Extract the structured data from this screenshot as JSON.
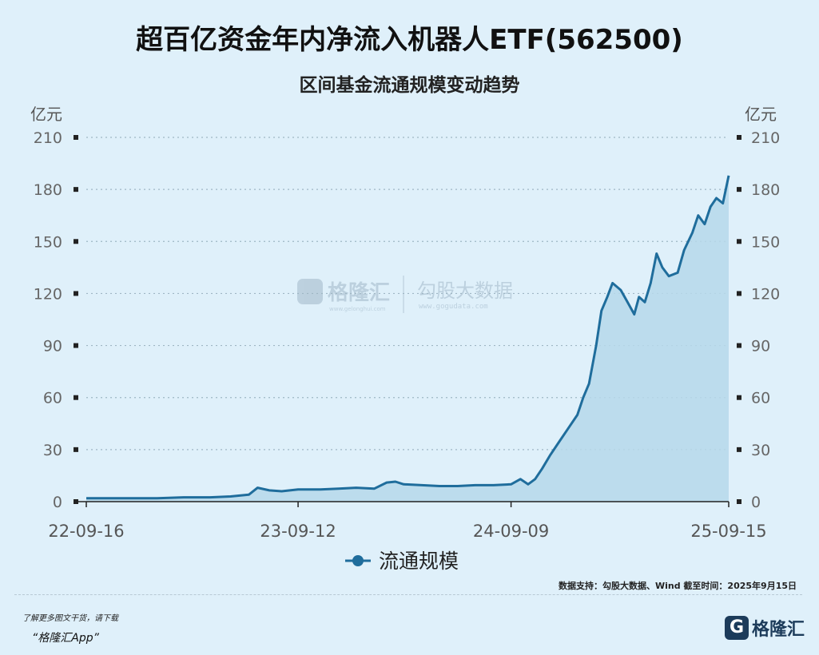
{
  "header": {
    "title": "超百亿资金年内净流入机器人ETF(562500)",
    "subtitle": "区间基金流通规模变动趋势"
  },
  "watermark": {
    "brand1": "格隆汇",
    "brand2": "勾股大数据",
    "brand1_url": "www.gelonghui.com",
    "brand2_url": "www.gogudata.com"
  },
  "footer": {
    "source": "数据支持：勾股大数据、Wind    截至时间：2025年9月15日",
    "promo": "了解更多图文干货，请下载",
    "promo_app": "“格隆汇App”",
    "logo_mark": "G",
    "logo_text": "格隆汇"
  },
  "colors": {
    "line": "#1f6d9c",
    "fill": "#b6d8ea",
    "background": "#dff0fa",
    "grid": "#9fb6c4"
  },
  "chart_data": {
    "type": "area",
    "title": "区间基金流通规模变动趋势",
    "ylabel_left": "亿元",
    "ylabel_right": "亿元",
    "ylim": [
      0,
      210
    ],
    "yticks": [
      0,
      30,
      60,
      90,
      120,
      150,
      180,
      210
    ],
    "xticks": [
      "22-09-16",
      "23-09-12",
      "24-09-09",
      "25-09-15"
    ],
    "grid": true,
    "legend_position": "bottom",
    "series": [
      {
        "name": "流通规模",
        "x": [
          "22-09-16",
          "22-11-01",
          "22-12-15",
          "23-01-15",
          "23-03-01",
          "23-04-15",
          "23-05-20",
          "23-06-20",
          "23-07-05",
          "23-07-25",
          "23-08-15",
          "23-09-12",
          "23-10-20",
          "23-11-20",
          "23-12-20",
          "24-01-20",
          "24-02-10",
          "24-02-25",
          "24-03-10",
          "24-04-10",
          "24-05-10",
          "24-06-10",
          "24-07-10",
          "24-08-10",
          "24-09-09",
          "24-09-25",
          "24-10-08",
          "24-10-20",
          "24-11-01",
          "24-11-15",
          "24-12-01",
          "24-12-15",
          "24-12-31",
          "25-01-10",
          "25-01-20",
          "25-02-01",
          "25-02-10",
          "25-02-20",
          "25-03-01",
          "25-03-15",
          "25-03-25",
          "25-04-07",
          "25-04-15",
          "25-04-25",
          "25-05-05",
          "25-05-15",
          "25-05-25",
          "25-06-05",
          "25-06-20",
          "25-07-01",
          "25-07-15",
          "25-07-25",
          "25-08-05",
          "25-08-15",
          "25-08-25",
          "25-09-05",
          "25-09-15"
        ],
        "values": [
          2,
          2,
          2,
          2,
          2.5,
          2.5,
          3,
          4,
          8,
          6.5,
          6,
          7,
          7,
          7.5,
          8,
          7.5,
          11,
          11.5,
          10,
          9.5,
          9,
          9,
          9.5,
          9.5,
          10,
          13,
          10,
          13,
          19,
          27,
          35,
          42,
          50,
          60,
          68,
          90,
          110,
          118,
          126,
          122,
          116,
          108,
          118,
          115,
          126,
          143,
          135,
          130,
          132,
          145,
          155,
          165,
          160,
          170,
          175,
          172,
          188
        ]
      }
    ]
  }
}
